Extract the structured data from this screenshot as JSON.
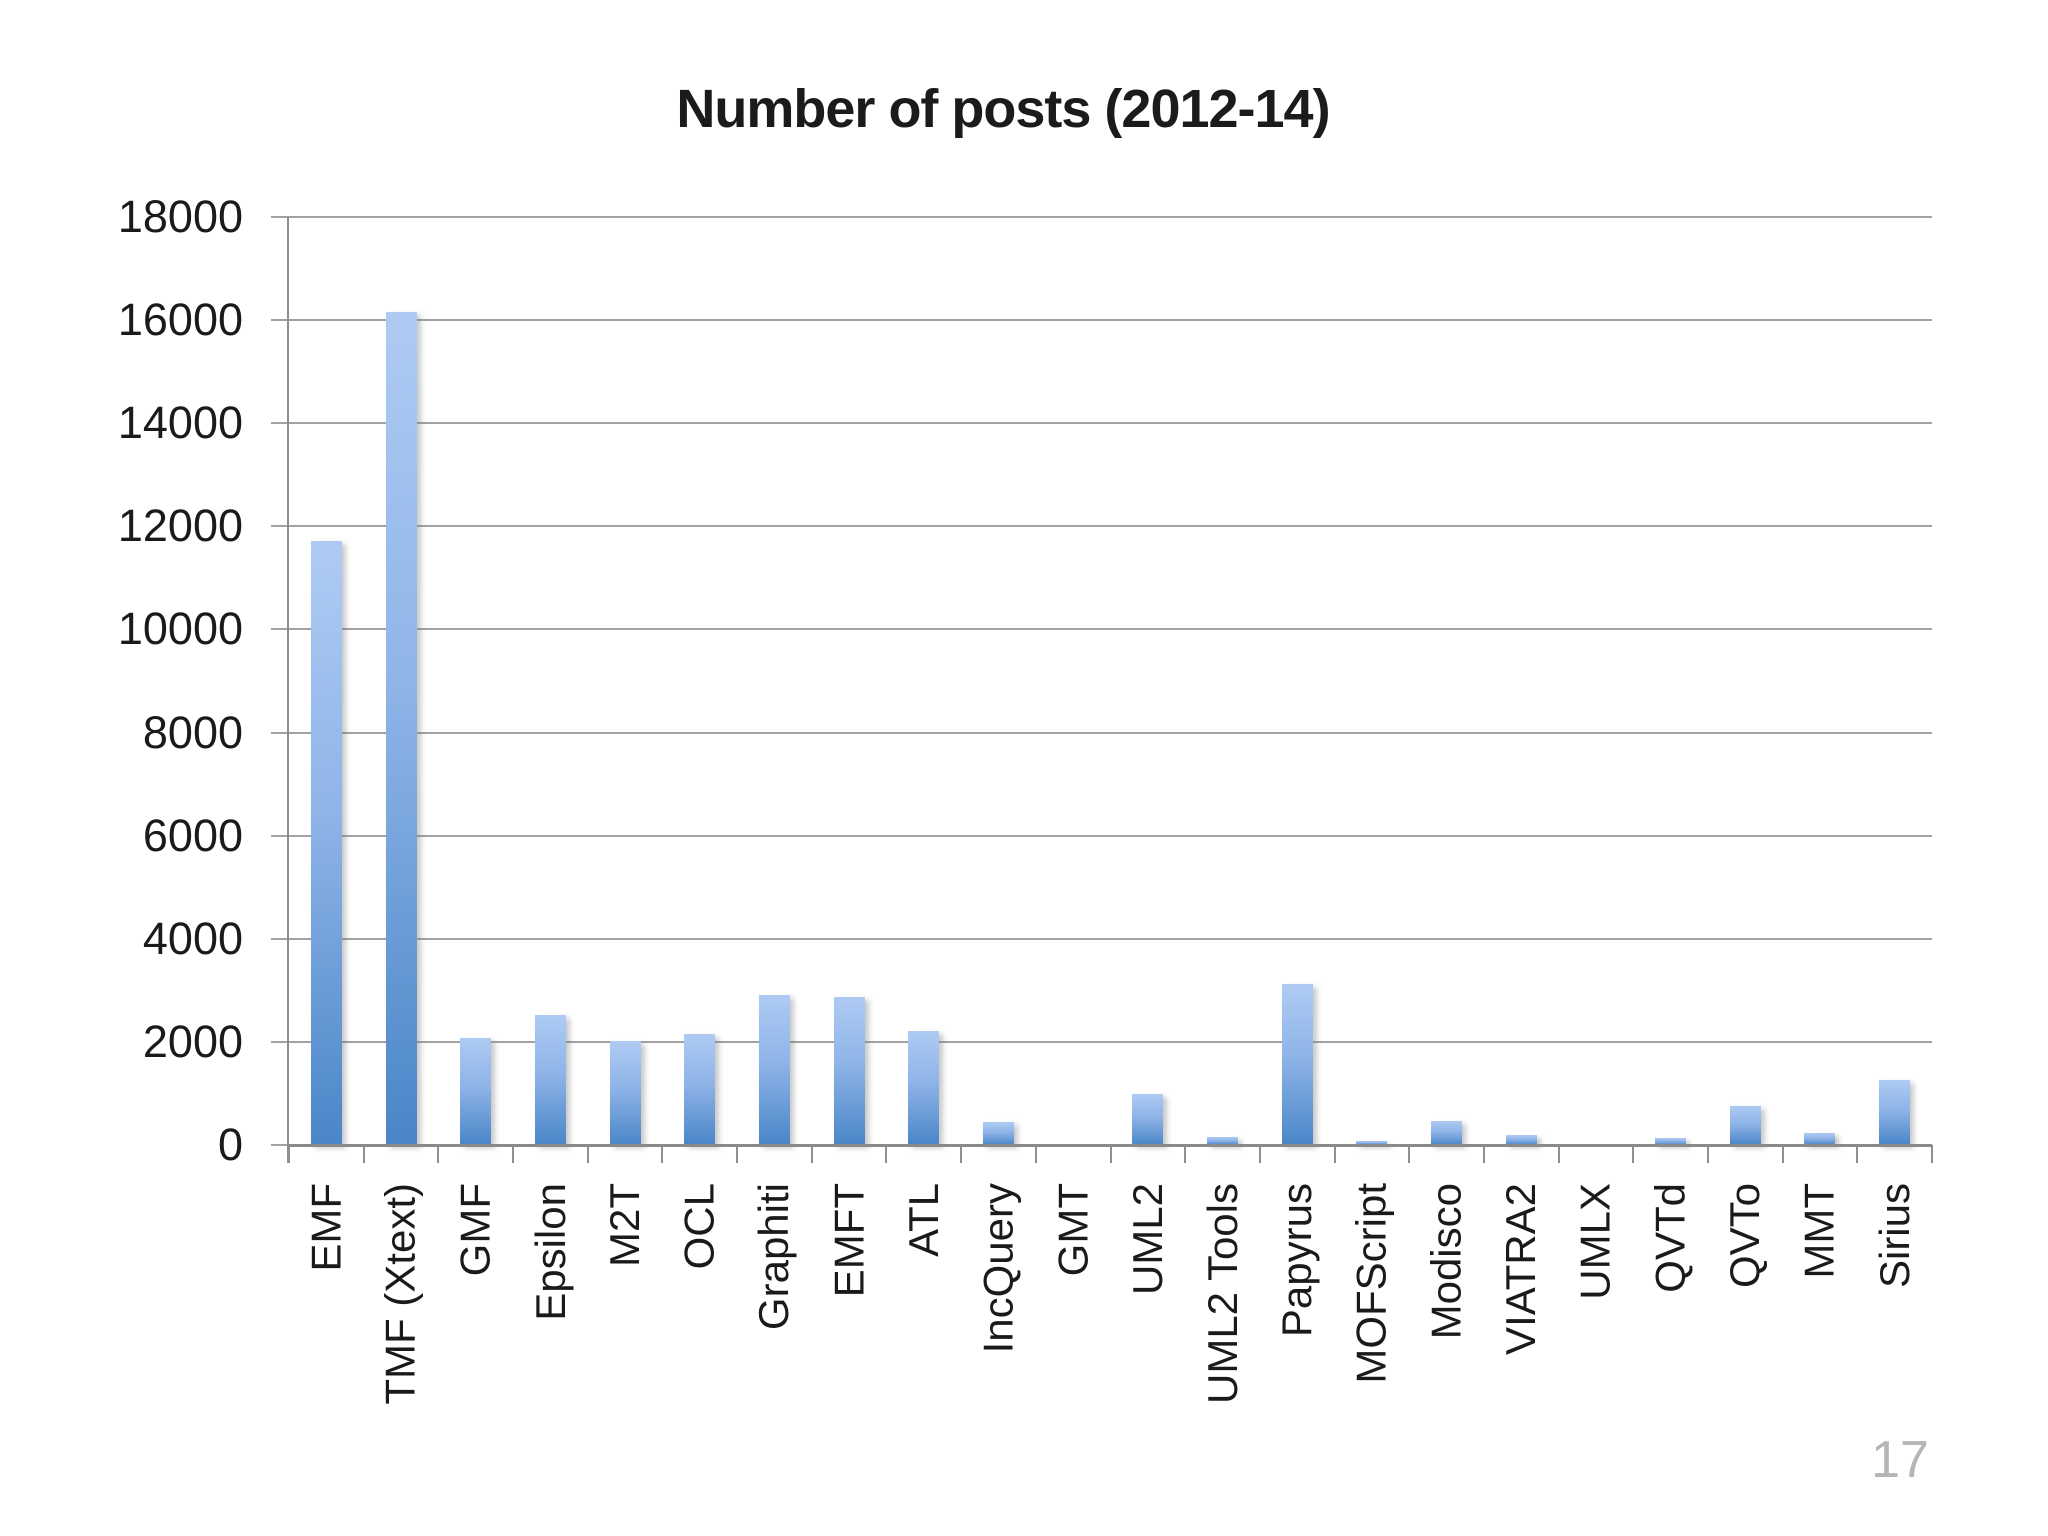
{
  "title": "Number of posts (2012-14)",
  "page_number": "17",
  "chart_data": {
    "type": "bar",
    "title": "Number of posts (2012-14)",
    "categories": [
      "EMF",
      "TMF (Xtext)",
      "GMF",
      "Epsilon",
      "M2T",
      "OCL",
      "Graphiti",
      "EMFT",
      "ATL",
      "IncQuery",
      "GMT",
      "UML2",
      "UML2 Tools",
      "Papyrus",
      "MOFScript",
      "Modisco",
      "VIATRA2",
      "UMLX",
      "QVTd",
      "QVTo",
      "MMT",
      "Sirius"
    ],
    "values": [
      11720,
      16150,
      2075,
      2520,
      2020,
      2150,
      2900,
      2880,
      2215,
      440,
      0,
      980,
      160,
      3120,
      75,
      465,
      190,
      0,
      145,
      760,
      225,
      1255
    ],
    "xlabel": "",
    "ylabel": "",
    "ylim": [
      0,
      18000
    ],
    "ytick_step": 2000,
    "ytick_labels": [
      "18000",
      "16000",
      "14000",
      "12000",
      "10000",
      "8000",
      "6000",
      "4000",
      "2000",
      "0"
    ],
    "grid": "horizontal",
    "legend_position": "none",
    "bar_color_top": "#aecbf3",
    "bar_color_bottom": "#4a86c8",
    "gridline_color": "#a2a2a2",
    "axis_color": "#8a8a8a",
    "text_color": "#1a1a1a",
    "page_number_color": "#b5b5b5"
  }
}
